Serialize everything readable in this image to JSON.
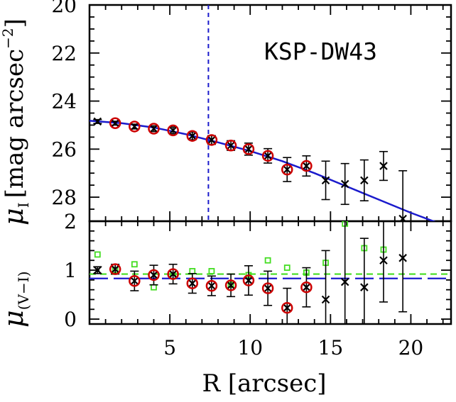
{
  "chart_data": [
    {
      "type": "scatter",
      "panel": "top",
      "annotation": "KSP-DW43",
      "ylabel_symbol": "μ",
      "ylabel_sub": "I",
      "ylabel_text": "[mag arcsec",
      "ylabel_sup": "−2",
      "ylabel_close": "]",
      "xlim": [
        0,
        22.5
      ],
      "ylim": [
        29.0,
        20.0
      ],
      "y_inverted": true,
      "yticks": [
        20,
        22,
        24,
        26,
        28
      ],
      "ytick_labels": [
        "20",
        "22",
        "24",
        "26",
        "28"
      ],
      "series": [
        {
          "marker": "cross",
          "color": "#000000",
          "points": [
            {
              "x": 0.5,
              "y": 24.85,
              "err": 0.08
            },
            {
              "x": 1.6,
              "y": 24.92,
              "err": 0.08
            },
            {
              "x": 2.8,
              "y": 25.06,
              "err": 0.1
            },
            {
              "x": 4.0,
              "y": 25.15,
              "err": 0.12
            },
            {
              "x": 5.2,
              "y": 25.22,
              "err": 0.14
            },
            {
              "x": 6.4,
              "y": 25.45,
              "err": 0.16
            },
            {
              "x": 7.6,
              "y": 25.62,
              "err": 0.18
            },
            {
              "x": 8.8,
              "y": 25.85,
              "err": 0.2
            },
            {
              "x": 9.9,
              "y": 26.0,
              "err": 0.25
            },
            {
              "x": 11.1,
              "y": 26.28,
              "err": 0.3
            },
            {
              "x": 12.3,
              "y": 26.85,
              "err": 0.5
            },
            {
              "x": 13.5,
              "y": 26.7,
              "err": 0.42
            },
            {
              "x": 14.7,
              "y": 27.3,
              "err": 0.8
            },
            {
              "x": 15.9,
              "y": 27.45,
              "err": 0.85
            },
            {
              "x": 17.1,
              "y": 27.3,
              "err": 0.85
            },
            {
              "x": 18.3,
              "y": 26.7,
              "err": 0.6
            },
            {
              "x": 19.5,
              "y": 28.9,
              "err": 2.0
            }
          ]
        },
        {
          "marker": "circle",
          "color": "#cc0000",
          "points": [
            {
              "x": 1.6,
              "y": 24.92
            },
            {
              "x": 2.8,
              "y": 25.06
            },
            {
              "x": 4.0,
              "y": 25.15
            },
            {
              "x": 5.2,
              "y": 25.22
            },
            {
              "x": 6.4,
              "y": 25.45
            },
            {
              "x": 7.6,
              "y": 25.62
            },
            {
              "x": 8.8,
              "y": 25.85
            },
            {
              "x": 9.9,
              "y": 26.0
            },
            {
              "x": 11.1,
              "y": 26.28
            },
            {
              "x": 12.3,
              "y": 26.85
            },
            {
              "x": 13.5,
              "y": 26.7
            }
          ]
        }
      ],
      "fit_curve": {
        "color": "#1a1acc",
        "points": [
          [
            0,
            24.82
          ],
          [
            2,
            24.92
          ],
          [
            4,
            25.1
          ],
          [
            6,
            25.38
          ],
          [
            8,
            25.72
          ],
          [
            10,
            26.08
          ],
          [
            12,
            26.5
          ],
          [
            14,
            27.0
          ],
          [
            16,
            27.55
          ],
          [
            18,
            28.1
          ],
          [
            20,
            28.65
          ],
          [
            21.8,
            29.1
          ]
        ]
      },
      "vertical_line": {
        "x": 7.4,
        "color": "#1a1acc",
        "style": "dashed"
      }
    },
    {
      "type": "scatter",
      "panel": "bottom",
      "ylabel_symbol": "μ",
      "ylabel_sub": "(V−I)",
      "xlabel": "R [arcsec]",
      "xlim": [
        0,
        22.5
      ],
      "ylim": [
        -0.1,
        2.0
      ],
      "xticks": [
        5,
        10,
        15,
        20
      ],
      "xtick_labels": [
        "5",
        "10",
        "15",
        "20"
      ],
      "yticks": [
        0,
        1,
        2
      ],
      "ytick_labels": [
        "0",
        "1",
        "2"
      ],
      "series": [
        {
          "marker": "cross",
          "color": "#000000",
          "points": [
            {
              "x": 0.5,
              "y": 1.0,
              "err": 0.07
            },
            {
              "x": 1.6,
              "y": 1.02,
              "err": 0.1
            },
            {
              "x": 2.8,
              "y": 0.78,
              "err": 0.2
            },
            {
              "x": 4.0,
              "y": 0.9,
              "err": 0.2
            },
            {
              "x": 5.2,
              "y": 0.92,
              "err": 0.2
            },
            {
              "x": 6.4,
              "y": 0.73,
              "err": 0.2
            },
            {
              "x": 7.6,
              "y": 0.68,
              "err": 0.2
            },
            {
              "x": 8.8,
              "y": 0.69,
              "err": 0.23
            },
            {
              "x": 9.9,
              "y": 0.79,
              "err": 0.3
            },
            {
              "x": 11.1,
              "y": 0.63,
              "err": 0.35
            },
            {
              "x": 12.3,
              "y": 0.23,
              "err": 0.4
            },
            {
              "x": 13.5,
              "y": 0.65,
              "err": 0.4
            },
            {
              "x": 14.7,
              "y": 0.4,
              "err": 1.0
            },
            {
              "x": 15.9,
              "y": 0.76,
              "err": 1.3
            },
            {
              "x": 17.1,
              "y": 0.65,
              "err": 1.0
            },
            {
              "x": 18.3,
              "y": 1.2,
              "err": 0.85
            },
            {
              "x": 19.5,
              "y": 1.25,
              "err": 1.1
            }
          ]
        },
        {
          "marker": "circle",
          "color": "#cc0000",
          "points": [
            {
              "x": 1.6,
              "y": 1.02
            },
            {
              "x": 2.8,
              "y": 0.78
            },
            {
              "x": 4.0,
              "y": 0.9
            },
            {
              "x": 5.2,
              "y": 0.92
            },
            {
              "x": 6.4,
              "y": 0.73
            },
            {
              "x": 7.6,
              "y": 0.68
            },
            {
              "x": 8.8,
              "y": 0.69
            },
            {
              "x": 9.9,
              "y": 0.79
            },
            {
              "x": 11.1,
              "y": 0.63
            },
            {
              "x": 12.3,
              "y": 0.23
            },
            {
              "x": 13.5,
              "y": 0.65
            }
          ]
        },
        {
          "marker": "square",
          "color": "#44dd22",
          "points": [
            {
              "x": 0.5,
              "y": 1.32
            },
            {
              "x": 1.6,
              "y": 1.0
            },
            {
              "x": 2.8,
              "y": 1.12
            },
            {
              "x": 4.0,
              "y": 0.65
            },
            {
              "x": 5.2,
              "y": 0.88
            },
            {
              "x": 6.4,
              "y": 0.98
            },
            {
              "x": 7.6,
              "y": 0.98
            },
            {
              "x": 8.8,
              "y": 0.7
            },
            {
              "x": 9.9,
              "y": 0.9
            },
            {
              "x": 11.1,
              "y": 1.2
            },
            {
              "x": 12.3,
              "y": 1.05
            },
            {
              "x": 13.5,
              "y": 0.95
            },
            {
              "x": 14.7,
              "y": 1.15
            },
            {
              "x": 15.9,
              "y": 1.95
            },
            {
              "x": 17.1,
              "y": 1.45
            },
            {
              "x": 18.3,
              "y": 1.42
            }
          ]
        }
      ],
      "hlines": [
        {
          "y": 0.92,
          "color": "#44dd22",
          "style": "dashed"
        },
        {
          "y": 0.83,
          "color": "#1a1acc",
          "style": "long-dashed"
        }
      ]
    }
  ]
}
